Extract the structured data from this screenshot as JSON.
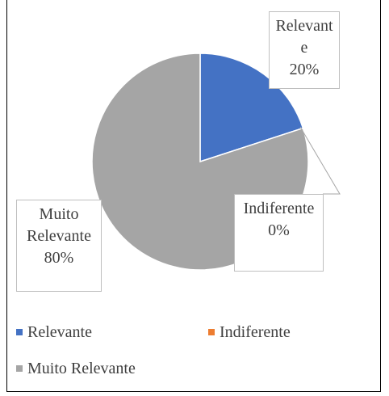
{
  "chart_data": {
    "type": "pie",
    "categories": [
      "Relevante",
      "Indiferente",
      "Muito Relevante"
    ],
    "values": [
      20,
      0,
      80
    ],
    "value_labels": [
      "20%",
      "0%",
      "80%"
    ],
    "colors": [
      "#4472c4",
      "#ed7d31",
      "#a5a5a5"
    ],
    "legend": "bottom"
  }
}
